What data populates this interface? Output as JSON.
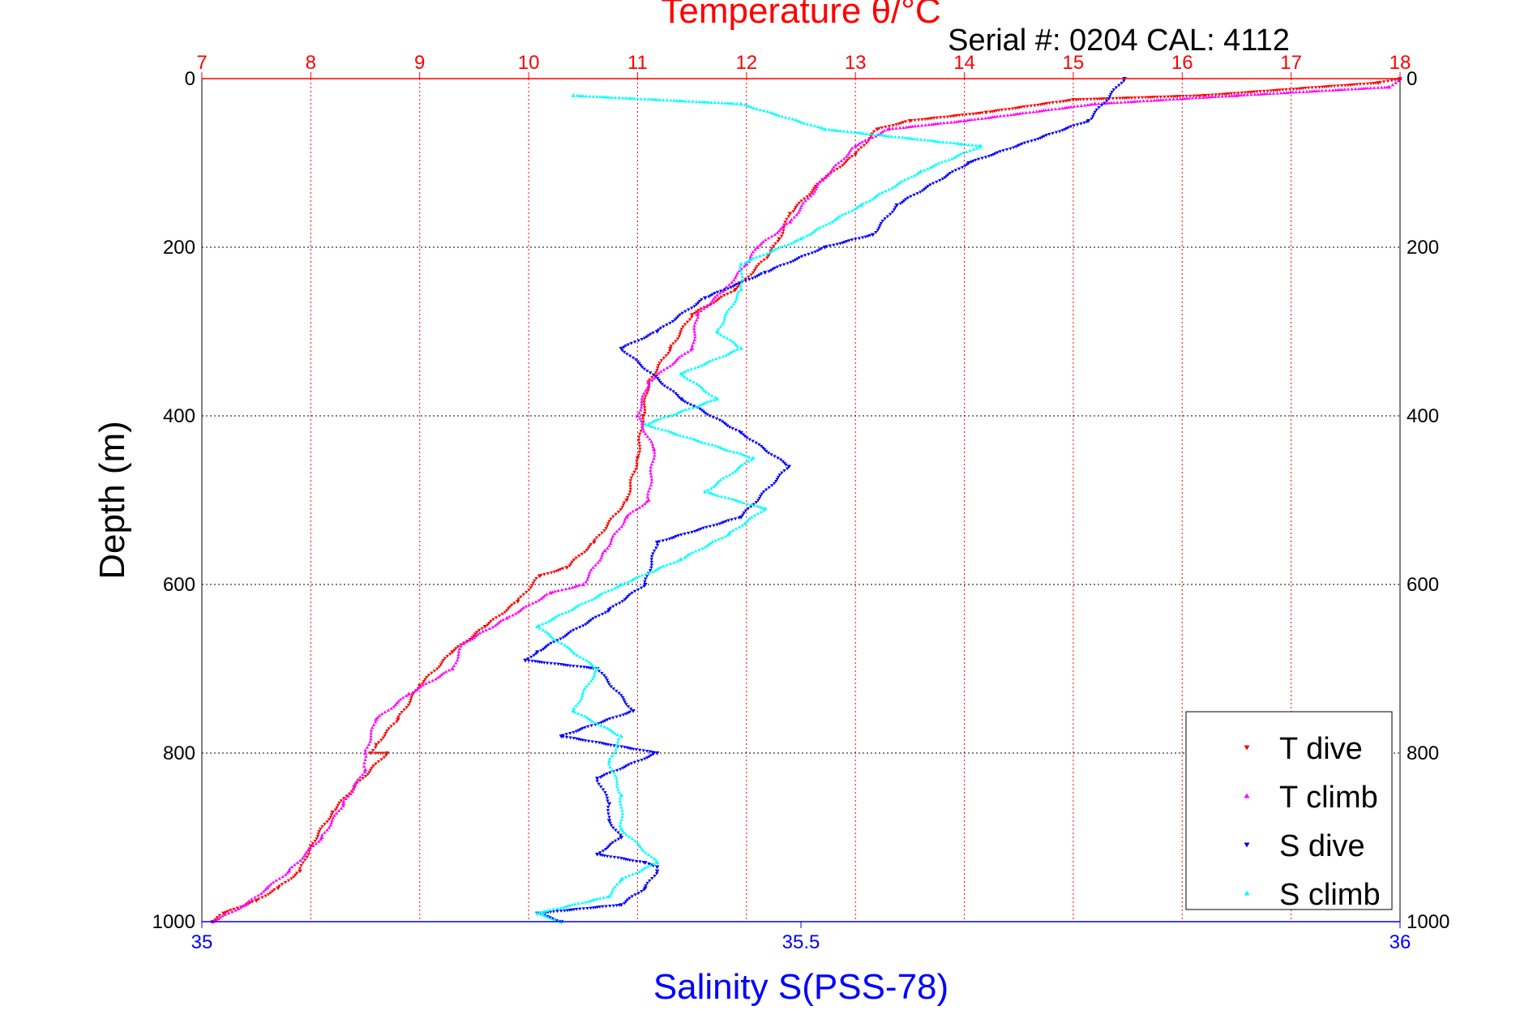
{
  "chart_data": {
    "type": "scatter",
    "title": "Temperature θ/°C",
    "subtitle": "Serial #: 0204  CAL: 4112",
    "ylabel": "Depth (m)",
    "xlabel_bottom": "Salinity S(PSS-78)",
    "ylim": [
      1000,
      0
    ],
    "y_ticks": [
      0,
      200,
      400,
      600,
      800,
      1000
    ],
    "x_top": {
      "lim": [
        7,
        18
      ],
      "ticks": [
        7,
        8,
        9,
        10,
        11,
        12,
        13,
        14,
        15,
        16,
        17,
        18
      ]
    },
    "x_bottom": {
      "lim": [
        35,
        36
      ],
      "ticks": [
        35,
        35.5,
        36
      ]
    },
    "grid": true,
    "legend_position": "bottom-right",
    "colors": {
      "temperature_axis": "#ff0000",
      "salinity_axis": "#0000ff",
      "T dive": "#ff0000",
      "T climb": "#ff00ff",
      "S dive": "#0000ff",
      "S climb": "#00ffff"
    },
    "series": [
      {
        "name": "T dive",
        "axis": "top",
        "marker": "triangle-down",
        "x": [
          18.0,
          17.8,
          16.2,
          15.0,
          14.2,
          13.5,
          13.2,
          13.0,
          12.7,
          12.4,
          12.3,
          12.2,
          11.9,
          11.5,
          11.3,
          11.1,
          11.05,
          11.0,
          10.9,
          10.6,
          10.35,
          10.1,
          9.9,
          9.6,
          9.3,
          9.0,
          8.8,
          8.6,
          8.55,
          8.7,
          8.4,
          8.2,
          8.0,
          7.9,
          7.7,
          7.5,
          7.2,
          7.1
        ],
        "y": [
          0,
          5,
          20,
          25,
          40,
          50,
          60,
          90,
          120,
          160,
          190,
          210,
          250,
          280,
          320,
          360,
          400,
          450,
          500,
          550,
          580,
          590,
          620,
          650,
          680,
          720,
          760,
          790,
          800,
          800,
          840,
          870,
          910,
          940,
          960,
          975,
          990,
          1000
        ]
      },
      {
        "name": "T climb",
        "axis": "top",
        "marker": "triangle-up",
        "x": [
          18.0,
          17.9,
          16.5,
          15.2,
          14.0,
          13.3,
          13.0,
          12.7,
          12.4,
          12.1,
          12.0,
          11.8,
          11.55,
          11.5,
          11.1,
          11.0,
          11.15,
          11.1,
          10.9,
          10.7,
          10.5,
          10.2,
          9.8,
          9.4,
          9.3,
          8.9,
          8.6,
          8.5,
          8.5,
          8.3,
          8.1,
          7.8,
          7.6,
          7.4,
          7.1
        ],
        "y": [
          0,
          10,
          20,
          30,
          50,
          60,
          80,
          120,
          170,
          200,
          220,
          250,
          280,
          320,
          360,
          400,
          440,
          500,
          520,
          560,
          600,
          610,
          640,
          670,
          700,
          730,
          760,
          800,
          820,
          860,
          900,
          940,
          960,
          980,
          1000
        ]
      },
      {
        "name": "S dive",
        "axis": "bottom",
        "marker": "triangle-down",
        "x": [
          35.77,
          35.74,
          35.64,
          35.58,
          35.56,
          35.52,
          35.47,
          35.42,
          35.38,
          35.35,
          35.4,
          35.45,
          35.49,
          35.45,
          35.38,
          35.37,
          35.34,
          35.28,
          35.27,
          35.33,
          35.36,
          35.3,
          35.38,
          35.33,
          35.34,
          35.34,
          35.35,
          35.33,
          35.37,
          35.38,
          35.38,
          35.37,
          35.35,
          35.28,
          35.3
        ],
        "y": [
          0,
          50,
          100,
          150,
          185,
          200,
          230,
          260,
          300,
          320,
          380,
          420,
          460,
          520,
          550,
          600,
          630,
          680,
          690,
          700,
          750,
          780,
          800,
          830,
          860,
          880,
          900,
          920,
          930,
          935,
          940,
          960,
          980,
          990,
          1000
        ]
      },
      {
        "name": "S climb",
        "axis": "bottom",
        "marker": "triangle-up",
        "x": [
          35.31,
          35.45,
          35.52,
          35.65,
          35.6,
          35.55,
          35.5,
          35.45,
          35.45,
          35.43,
          35.45,
          35.4,
          35.43,
          35.37,
          35.46,
          35.42,
          35.47,
          35.44,
          35.4,
          35.35,
          35.28,
          35.33,
          35.31,
          35.35,
          35.34,
          35.35,
          35.35,
          35.38,
          35.35,
          35.34,
          35.28,
          35.3
        ],
        "y": [
          20,
          30,
          60,
          80,
          110,
          150,
          190,
          220,
          250,
          300,
          320,
          350,
          380,
          410,
          450,
          490,
          510,
          540,
          570,
          600,
          650,
          700,
          750,
          780,
          810,
          850,
          890,
          930,
          950,
          970,
          990,
          1000
        ]
      }
    ]
  }
}
